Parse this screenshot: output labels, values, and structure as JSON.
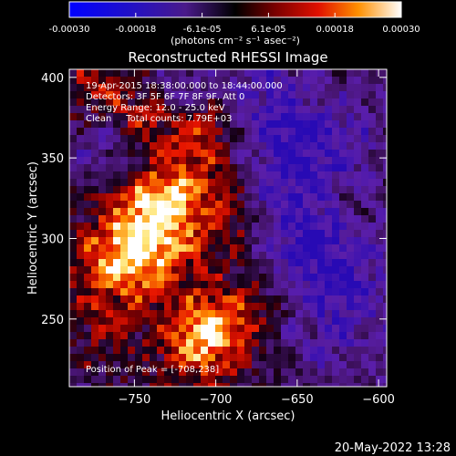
{
  "chart_data": {
    "type": "heatmap",
    "title": "Reconstructed RHESSI Image",
    "xlabel": "Heliocentric X (arcsec)",
    "ylabel": "Heliocentric Y (arcsec)",
    "xlim": [
      -790,
      -595
    ],
    "ylim": [
      208,
      405
    ],
    "xticks": [
      -750,
      -700,
      -650,
      -600
    ],
    "yticks": [
      250,
      300,
      350,
      400
    ],
    "colorbar": {
      "ticks": [
        "-0.00030",
        "-0.00018",
        "-6.1e-05",
        "6.1e-05",
        "0.00018",
        "0.00030"
      ],
      "range": [
        -0.0003,
        0.0003
      ],
      "unit_label": "(photons cm⁻² s⁻¹ asec⁻²)"
    },
    "annotations": [
      "19-Apr-2015 18:38:00.000 to 18:44:00.000",
      "Detectors: 3F 5F 6F 7F 8F 9F, Att 0",
      "Energy Range: 12.0 - 25.0 keV",
      "Clean     Total counts: 7.79E+03",
      "Position of Peak = [-708,238]"
    ],
    "peak": {
      "x": -708,
      "y": 238
    },
    "grid": false
  },
  "footer": {
    "date": "20-May-2022 13:28"
  }
}
